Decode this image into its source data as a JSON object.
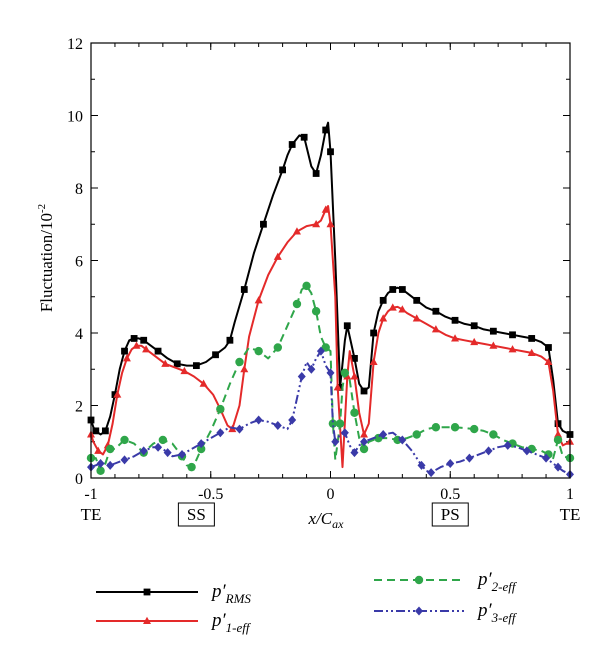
{
  "chart_data": {
    "type": "line",
    "xlabel": "x/C",
    "xlabel_sub": "ax",
    "ylabel": "Fluctuation/10",
    "ylabel_exp": "-2",
    "xlim": [
      -1,
      1
    ],
    "ylim": [
      0,
      12
    ],
    "xticks": [
      -1,
      -0.5,
      0,
      0.5,
      1
    ],
    "xtick_labels": [
      "-1",
      "-0.5",
      "0",
      "0.5",
      "1"
    ],
    "yticks": [
      0,
      2,
      4,
      6,
      8,
      10,
      12
    ],
    "ytick_labels": [
      "0",
      "2",
      "4",
      "6",
      "8",
      "10",
      "12"
    ],
    "annotations": [
      {
        "text": "TE",
        "x": -1,
        "boxed": false
      },
      {
        "text": "SS",
        "x": -0.56,
        "boxed": true
      },
      {
        "text": "PS",
        "x": 0.5,
        "boxed": true
      },
      {
        "text": "TE",
        "x": 1,
        "boxed": false
      }
    ],
    "legend_placement": "bottom",
    "series": [
      {
        "name": "p′",
        "name_sub": "RMS",
        "color": "#000000",
        "dash": "solid",
        "marker": "square",
        "points": [
          [
            -1,
            1.6
          ],
          [
            -0.99,
            1.4
          ],
          [
            -0.98,
            1.3
          ],
          [
            -0.96,
            1.2
          ],
          [
            -0.94,
            1.3
          ],
          [
            -0.92,
            1.7
          ],
          [
            -0.9,
            2.3
          ],
          [
            -0.88,
            3.0
          ],
          [
            -0.86,
            3.5
          ],
          [
            -0.84,
            3.8
          ],
          [
            -0.82,
            3.85
          ],
          [
            -0.8,
            3.85
          ],
          [
            -0.78,
            3.8
          ],
          [
            -0.76,
            3.7
          ],
          [
            -0.72,
            3.5
          ],
          [
            -0.68,
            3.3
          ],
          [
            -0.64,
            3.15
          ],
          [
            -0.6,
            3.1
          ],
          [
            -0.56,
            3.1
          ],
          [
            -0.52,
            3.2
          ],
          [
            -0.48,
            3.4
          ],
          [
            -0.44,
            3.6
          ],
          [
            -0.42,
            3.8
          ],
          [
            -0.4,
            4.3
          ],
          [
            -0.36,
            5.2
          ],
          [
            -0.32,
            6.2
          ],
          [
            -0.28,
            7.0
          ],
          [
            -0.24,
            7.8
          ],
          [
            -0.2,
            8.5
          ],
          [
            -0.18,
            8.9
          ],
          [
            -0.16,
            9.2
          ],
          [
            -0.13,
            9.45
          ],
          [
            -0.11,
            9.4
          ],
          [
            -0.08,
            8.6
          ],
          [
            -0.06,
            8.4
          ],
          [
            -0.04,
            8.9
          ],
          [
            -0.02,
            9.6
          ],
          [
            -0.01,
            9.8
          ],
          [
            0.0,
            9.0
          ],
          [
            0.02,
            6.0
          ],
          [
            0.04,
            2.5
          ],
          [
            0.06,
            3.8
          ],
          [
            0.07,
            4.2
          ],
          [
            0.08,
            3.9
          ],
          [
            0.1,
            3.3
          ],
          [
            0.12,
            2.6
          ],
          [
            0.14,
            2.4
          ],
          [
            0.16,
            2.5
          ],
          [
            0.18,
            4.0
          ],
          [
            0.2,
            4.6
          ],
          [
            0.22,
            4.9
          ],
          [
            0.24,
            5.1
          ],
          [
            0.26,
            5.2
          ],
          [
            0.28,
            5.25
          ],
          [
            0.3,
            5.2
          ],
          [
            0.32,
            5.1
          ],
          [
            0.36,
            4.9
          ],
          [
            0.4,
            4.7
          ],
          [
            0.44,
            4.6
          ],
          [
            0.48,
            4.45
          ],
          [
            0.52,
            4.35
          ],
          [
            0.56,
            4.25
          ],
          [
            0.6,
            4.2
          ],
          [
            0.64,
            4.1
          ],
          [
            0.68,
            4.05
          ],
          [
            0.72,
            4.0
          ],
          [
            0.76,
            3.95
          ],
          [
            0.8,
            3.9
          ],
          [
            0.84,
            3.85
          ],
          [
            0.88,
            3.75
          ],
          [
            0.91,
            3.6
          ],
          [
            0.93,
            2.7
          ],
          [
            0.95,
            1.5
          ],
          [
            0.97,
            1.3
          ],
          [
            1.0,
            1.2
          ]
        ]
      },
      {
        "name": "p′",
        "name_sub": "1-eff",
        "color": "#e42a2a",
        "dash": "solid",
        "marker": "triangle",
        "points": [
          [
            -1,
            1.2
          ],
          [
            -0.99,
            1.0
          ],
          [
            -0.97,
            0.75
          ],
          [
            -0.95,
            0.65
          ],
          [
            -0.93,
            0.9
          ],
          [
            -0.91,
            1.5
          ],
          [
            -0.89,
            2.3
          ],
          [
            -0.87,
            2.9
          ],
          [
            -0.85,
            3.3
          ],
          [
            -0.83,
            3.55
          ],
          [
            -0.81,
            3.65
          ],
          [
            -0.79,
            3.65
          ],
          [
            -0.77,
            3.55
          ],
          [
            -0.73,
            3.35
          ],
          [
            -0.69,
            3.15
          ],
          [
            -0.65,
            3.05
          ],
          [
            -0.61,
            2.95
          ],
          [
            -0.57,
            2.8
          ],
          [
            -0.53,
            2.6
          ],
          [
            -0.49,
            2.3
          ],
          [
            -0.46,
            1.9
          ],
          [
            -0.43,
            1.45
          ],
          [
            -0.41,
            1.35
          ],
          [
            -0.38,
            2.0
          ],
          [
            -0.36,
            3.0
          ],
          [
            -0.34,
            3.9
          ],
          [
            -0.3,
            4.9
          ],
          [
            -0.26,
            5.6
          ],
          [
            -0.22,
            6.1
          ],
          [
            -0.18,
            6.5
          ],
          [
            -0.14,
            6.8
          ],
          [
            -0.1,
            6.95
          ],
          [
            -0.06,
            7.0
          ],
          [
            -0.04,
            7.1
          ],
          [
            -0.02,
            7.4
          ],
          [
            -0.01,
            7.5
          ],
          [
            0.0,
            7.0
          ],
          [
            0.02,
            5.0
          ],
          [
            0.03,
            2.5
          ],
          [
            0.05,
            0.3
          ],
          [
            0.07,
            2.8
          ],
          [
            0.08,
            3.5
          ],
          [
            0.1,
            2.8
          ],
          [
            0.12,
            1.8
          ],
          [
            0.14,
            1.2
          ],
          [
            0.16,
            1.5
          ],
          [
            0.18,
            3.2
          ],
          [
            0.2,
            4.0
          ],
          [
            0.22,
            4.4
          ],
          [
            0.24,
            4.6
          ],
          [
            0.26,
            4.7
          ],
          [
            0.28,
            4.72
          ],
          [
            0.3,
            4.65
          ],
          [
            0.32,
            4.55
          ],
          [
            0.36,
            4.4
          ],
          [
            0.4,
            4.25
          ],
          [
            0.44,
            4.1
          ],
          [
            0.48,
            3.95
          ],
          [
            0.52,
            3.85
          ],
          [
            0.56,
            3.8
          ],
          [
            0.6,
            3.75
          ],
          [
            0.64,
            3.7
          ],
          [
            0.68,
            3.65
          ],
          [
            0.72,
            3.6
          ],
          [
            0.76,
            3.55
          ],
          [
            0.8,
            3.5
          ],
          [
            0.84,
            3.45
          ],
          [
            0.88,
            3.35
          ],
          [
            0.91,
            3.2
          ],
          [
            0.93,
            2.4
          ],
          [
            0.95,
            1.2
          ],
          [
            0.97,
            0.9
          ],
          [
            1.0,
            1.0
          ]
        ]
      },
      {
        "name": "p′",
        "name_sub": "2-eff",
        "color": "#2fa64a",
        "dash": "dashed",
        "marker": "circle",
        "points": [
          [
            -1,
            0.55
          ],
          [
            -0.98,
            0.55
          ],
          [
            -0.96,
            0.2
          ],
          [
            -0.94,
            0.4
          ],
          [
            -0.92,
            0.8
          ],
          [
            -0.9,
            0.8
          ],
          [
            -0.86,
            1.05
          ],
          [
            -0.82,
            0.95
          ],
          [
            -0.78,
            0.7
          ],
          [
            -0.74,
            0.95
          ],
          [
            -0.7,
            1.05
          ],
          [
            -0.66,
            0.95
          ],
          [
            -0.62,
            0.6
          ],
          [
            -0.6,
            0.35
          ],
          [
            -0.58,
            0.3
          ],
          [
            -0.56,
            0.5
          ],
          [
            -0.54,
            0.8
          ],
          [
            -0.5,
            1.3
          ],
          [
            -0.46,
            1.9
          ],
          [
            -0.42,
            2.6
          ],
          [
            -0.38,
            3.2
          ],
          [
            -0.34,
            3.6
          ],
          [
            -0.3,
            3.5
          ],
          [
            -0.26,
            3.3
          ],
          [
            -0.22,
            3.6
          ],
          [
            -0.18,
            4.2
          ],
          [
            -0.14,
            4.8
          ],
          [
            -0.12,
            5.2
          ],
          [
            -0.1,
            5.3
          ],
          [
            -0.08,
            5.1
          ],
          [
            -0.06,
            4.6
          ],
          [
            -0.04,
            3.9
          ],
          [
            -0.02,
            3.6
          ],
          [
            0.0,
            3.5
          ],
          [
            0.01,
            1.5
          ],
          [
            0.02,
            0.5
          ],
          [
            0.04,
            1.5
          ],
          [
            0.05,
            2.5
          ],
          [
            0.06,
            2.9
          ],
          [
            0.08,
            2.7
          ],
          [
            0.1,
            1.8
          ],
          [
            0.12,
            1.1
          ],
          [
            0.14,
            0.8
          ],
          [
            0.16,
            1.0
          ],
          [
            0.2,
            1.1
          ],
          [
            0.24,
            1.1
          ],
          [
            0.28,
            1.05
          ],
          [
            0.32,
            1.1
          ],
          [
            0.36,
            1.2
          ],
          [
            0.4,
            1.35
          ],
          [
            0.44,
            1.4
          ],
          [
            0.48,
            1.4
          ],
          [
            0.52,
            1.4
          ],
          [
            0.56,
            1.38
          ],
          [
            0.6,
            1.35
          ],
          [
            0.64,
            1.3
          ],
          [
            0.68,
            1.2
          ],
          [
            0.72,
            1.05
          ],
          [
            0.76,
            0.95
          ],
          [
            0.8,
            0.85
          ],
          [
            0.84,
            0.8
          ],
          [
            0.88,
            0.75
          ],
          [
            0.91,
            0.65
          ],
          [
            0.93,
            0.55
          ],
          [
            0.95,
            1.05
          ],
          [
            0.97,
            0.6
          ],
          [
            1.0,
            0.55
          ]
        ]
      },
      {
        "name": "p′",
        "name_sub": "3-eff",
        "color": "#3a3aa8",
        "dash": "dashdotdot",
        "marker": "diamond",
        "points": [
          [
            -1,
            0.3
          ],
          [
            -0.98,
            0.35
          ],
          [
            -0.96,
            0.4
          ],
          [
            -0.94,
            0.4
          ],
          [
            -0.92,
            0.35
          ],
          [
            -0.9,
            0.4
          ],
          [
            -0.86,
            0.5
          ],
          [
            -0.82,
            0.6
          ],
          [
            -0.78,
            0.75
          ],
          [
            -0.74,
            0.85
          ],
          [
            -0.72,
            0.85
          ],
          [
            -0.7,
            0.8
          ],
          [
            -0.68,
            0.7
          ],
          [
            -0.66,
            0.6
          ],
          [
            -0.62,
            0.65
          ],
          [
            -0.58,
            0.8
          ],
          [
            -0.54,
            0.95
          ],
          [
            -0.5,
            1.1
          ],
          [
            -0.46,
            1.25
          ],
          [
            -0.42,
            1.4
          ],
          [
            -0.38,
            1.35
          ],
          [
            -0.34,
            1.5
          ],
          [
            -0.3,
            1.6
          ],
          [
            -0.26,
            1.55
          ],
          [
            -0.22,
            1.45
          ],
          [
            -0.18,
            1.35
          ],
          [
            -0.16,
            1.6
          ],
          [
            -0.14,
            2.2
          ],
          [
            -0.12,
            2.8
          ],
          [
            -0.1,
            3.2
          ],
          [
            -0.08,
            3.0
          ],
          [
            -0.06,
            3.3
          ],
          [
            -0.04,
            3.5
          ],
          [
            -0.02,
            3.1
          ],
          [
            0.0,
            2.9
          ],
          [
            0.01,
            1.5
          ],
          [
            0.02,
            1.0
          ],
          [
            0.04,
            1.2
          ],
          [
            0.06,
            1.25
          ],
          [
            0.08,
            0.9
          ],
          [
            0.1,
            0.7
          ],
          [
            0.12,
            0.9
          ],
          [
            0.14,
            1.0
          ],
          [
            0.18,
            1.1
          ],
          [
            0.22,
            1.2
          ],
          [
            0.26,
            1.25
          ],
          [
            0.3,
            1.05
          ],
          [
            0.34,
            0.75
          ],
          [
            0.38,
            0.35
          ],
          [
            0.4,
            0.2
          ],
          [
            0.42,
            0.15
          ],
          [
            0.46,
            0.3
          ],
          [
            0.5,
            0.4
          ],
          [
            0.54,
            0.45
          ],
          [
            0.58,
            0.55
          ],
          [
            0.62,
            0.65
          ],
          [
            0.66,
            0.75
          ],
          [
            0.7,
            0.85
          ],
          [
            0.74,
            0.9
          ],
          [
            0.78,
            0.85
          ],
          [
            0.82,
            0.75
          ],
          [
            0.86,
            0.65
          ],
          [
            0.9,
            0.55
          ],
          [
            0.93,
            0.4
          ],
          [
            0.95,
            0.3
          ],
          [
            0.97,
            0.2
          ],
          [
            1.0,
            0.1
          ]
        ]
      }
    ]
  }
}
